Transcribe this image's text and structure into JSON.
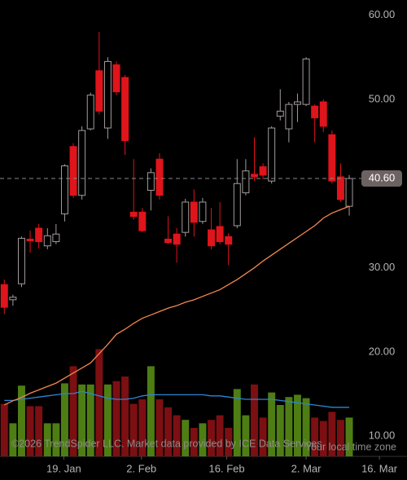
{
  "chart_data": {
    "type": "candlestick",
    "open": [
      28.0,
      26.2,
      28.1,
      33.4,
      34.7,
      32.6,
      33.1,
      36.4,
      44.4,
      38.6,
      46.5,
      53.4,
      46.6,
      54.1,
      52.6,
      36.6,
      36.6,
      39.2,
      42.9,
      33.4,
      34.0,
      34.2,
      37.8,
      35.5,
      34.5,
      34.9,
      33.7,
      35.0,
      38.9,
      41.1,
      42.0,
      40.3,
      48.0,
      46.5,
      49.4,
      49.4,
      49.2,
      49.7,
      45.8,
      40.8,
      37.3
    ],
    "high": [
      28.6,
      26.8,
      33.7,
      34.4,
      35.2,
      34.7,
      35.2,
      42.3,
      44.8,
      46.8,
      50.8,
      58.0,
      55.0,
      54.5,
      52.9,
      42.9,
      37.1,
      41.8,
      43.6,
      36.1,
      34.7,
      38.2,
      39.3,
      38.3,
      37.1,
      37.8,
      34.1,
      42.9,
      42.9,
      45.5,
      42.4,
      46.8,
      51.2,
      49.7,
      50.7,
      55.0,
      49.4,
      50.0,
      46.3,
      42.4,
      41.0
    ],
    "low": [
      24.5,
      25.5,
      27.7,
      31.8,
      32.3,
      32.2,
      32.8,
      35.5,
      38.3,
      38.1,
      46.3,
      48.2,
      45.3,
      50.5,
      43.4,
      35.7,
      34.2,
      36.8,
      38.1,
      32.8,
      30.6,
      33.7,
      33.7,
      35.2,
      32.2,
      32.8,
      30.3,
      34.7,
      38.6,
      40.3,
      40.5,
      40.0,
      47.5,
      44.9,
      47.3,
      49.2,
      44.9,
      46.1,
      40.0,
      37.8,
      36.2
    ],
    "close": [
      25.3,
      26.5,
      33.5,
      33.2,
      33.1,
      33.8,
      34.0,
      42.1,
      38.6,
      46.3,
      50.5,
      48.6,
      54.5,
      50.9,
      45.1,
      36.1,
      34.4,
      41.3,
      38.6,
      33.0,
      32.8,
      37.8,
      35.4,
      37.8,
      32.6,
      33.1,
      32.8,
      40.0,
      41.5,
      40.8,
      41.0,
      46.6,
      48.6,
      49.4,
      49.7,
      54.8,
      47.8,
      46.8,
      40.3,
      38.1,
      40.6
    ],
    "price_ma": [
      13.7,
      14.2,
      14.6,
      15.1,
      15.5,
      15.9,
      16.3,
      16.9,
      17.5,
      18.1,
      18.7,
      19.8,
      20.9,
      22.1,
      22.7,
      23.4,
      24.0,
      24.4,
      24.8,
      25.2,
      25.5,
      25.9,
      26.2,
      26.6,
      27.0,
      27.4,
      28.0,
      28.6,
      29.3,
      30.0,
      30.8,
      31.5,
      32.2,
      32.9,
      33.6,
      34.3,
      35.0,
      35.9,
      36.5,
      36.9,
      37.3
    ],
    "volume": [
      46,
      29,
      62,
      44,
      44,
      29,
      29,
      64,
      79,
      63,
      63,
      94,
      63,
      66,
      70,
      46,
      50,
      79,
      50,
      43,
      36,
      32,
      25,
      29,
      32,
      36,
      25,
      59,
      36,
      63,
      34,
      56,
      45,
      52,
      54,
      51,
      34,
      31,
      39,
      32,
      34
    ],
    "volume_ma": [
      49,
      49,
      50,
      51,
      52,
      53,
      54,
      55,
      55,
      57,
      55,
      53,
      51,
      50,
      50,
      51,
      53,
      54,
      54,
      54,
      54,
      54,
      54,
      54,
      53,
      53,
      52,
      51,
      50,
      50,
      50,
      50,
      49,
      48,
      47,
      46,
      45,
      44,
      43,
      43,
      43
    ],
    "ylim": [
      7.6,
      61.8
    ],
    "yticks": [
      {
        "value": 60,
        "label": "60.00"
      },
      {
        "value": 50,
        "label": "50.00"
      },
      {
        "value": 30,
        "label": "30.00"
      },
      {
        "value": 20,
        "label": "20.00"
      },
      {
        "value": 10,
        "label": "10.00"
      }
    ],
    "y2lim": [
      0,
      100
    ],
    "xlim": [
      -0.5,
      46.7
    ],
    "xticks": [
      {
        "value": 6.9,
        "label": "19. Jan"
      },
      {
        "value": 15.9,
        "label": "2. Feb"
      },
      {
        "value": 25.8,
        "label": "16. Feb"
      },
      {
        "value": 35.0,
        "label": "2. Mar"
      },
      {
        "value": 43.5,
        "label": "16. Mar"
      }
    ],
    "last_price": {
      "value": 40.6,
      "label": "40.60"
    },
    "up_color": "#a39c9c",
    "down_color": "#e0141b",
    "volume_up_color": "#4e7d14",
    "volume_down_color": "#7c0f12",
    "price_ma_color": "#f5874f",
    "volume_ma_color": "#2f84d6",
    "tag_color": "#6d6262",
    "copyright": "©2026 TrendSpider LLC. Market data provided by ICE Data Services",
    "timezone_note": "Your local time zone"
  }
}
